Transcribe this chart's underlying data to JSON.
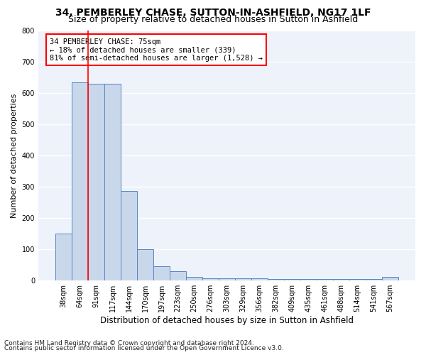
{
  "title1": "34, PEMBERLEY CHASE, SUTTON-IN-ASHFIELD, NG17 1LF",
  "title2": "Size of property relative to detached houses in Sutton in Ashfield",
  "xlabel": "Distribution of detached houses by size in Sutton in Ashfield",
  "ylabel": "Number of detached properties",
  "footnote1": "Contains HM Land Registry data © Crown copyright and database right 2024.",
  "footnote2": "Contains public sector information licensed under the Open Government Licence v3.0.",
  "bin_labels": [
    "38sqm",
    "64sqm",
    "91sqm",
    "117sqm",
    "144sqm",
    "170sqm",
    "197sqm",
    "223sqm",
    "250sqm",
    "276sqm",
    "303sqm",
    "329sqm",
    "356sqm",
    "382sqm",
    "409sqm",
    "435sqm",
    "461sqm",
    "488sqm",
    "514sqm",
    "541sqm",
    "567sqm"
  ],
  "bar_heights": [
    150,
    635,
    630,
    630,
    285,
    100,
    45,
    30,
    10,
    7,
    7,
    7,
    7,
    5,
    5,
    5,
    5,
    5,
    5,
    5,
    10
  ],
  "bar_color": "#c8d8ea",
  "bar_edge_color": "#5585c5",
  "red_line_x": 1.5,
  "annotation_line1": "34 PEMBERLEY CHASE: 75sqm",
  "annotation_line2": "← 18% of detached houses are smaller (339)",
  "annotation_line3": "81% of semi-detached houses are larger (1,528) →",
  "annotation_box_color": "white",
  "annotation_box_edge_color": "red",
  "ylim": [
    0,
    800
  ],
  "yticks": [
    0,
    100,
    200,
    300,
    400,
    500,
    600,
    700,
    800
  ],
  "background_color": "#eef2fa",
  "grid_color": "white",
  "title1_fontsize": 10,
  "title2_fontsize": 9,
  "xlabel_fontsize": 8.5,
  "ylabel_fontsize": 8,
  "tick_fontsize": 7,
  "annot_fontsize": 7.5,
  "footnote_fontsize": 6.5
}
